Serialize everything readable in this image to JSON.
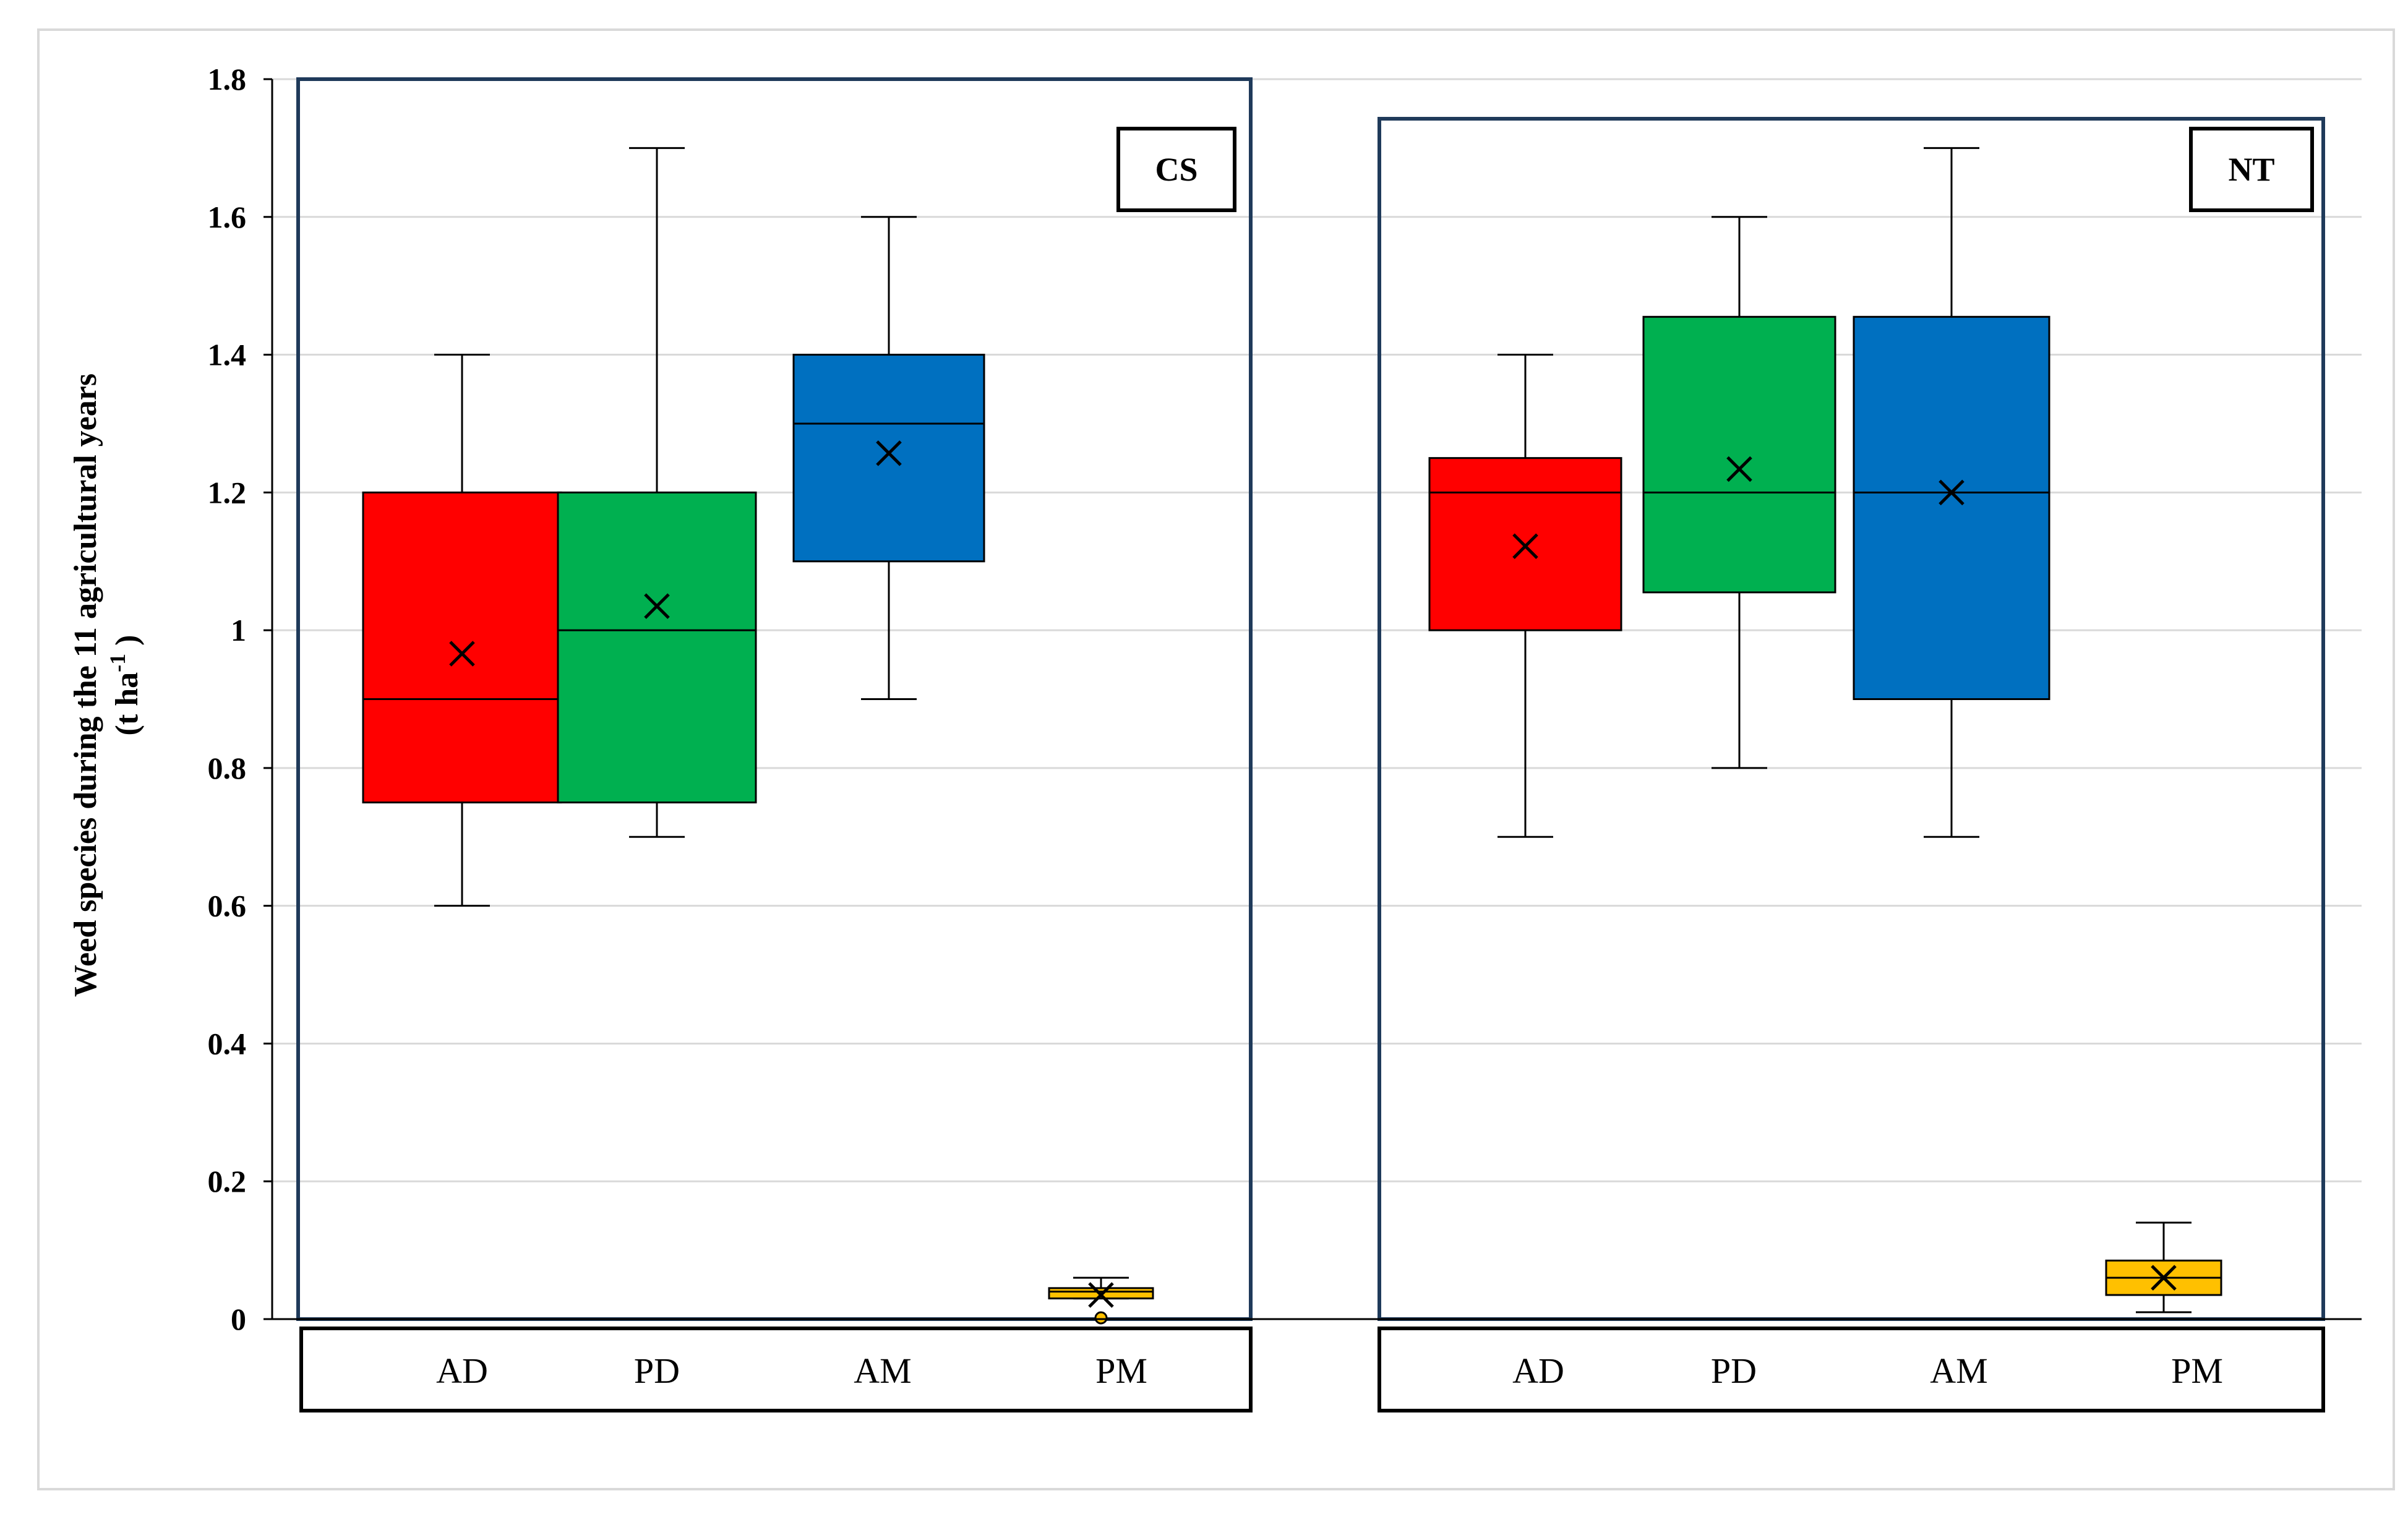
{
  "chart_data": {
    "type": "box",
    "ylabel_line1": "Weed species during the 11 agricultural years",
    "ylabel_line2_pre": "(t ha",
    "ylabel_line2_sup": "-1",
    "ylabel_line2_post": " )",
    "ylim": [
      0,
      1.8
    ],
    "y_ticks": [
      "0",
      "0.2",
      "0.4",
      "0.6",
      "0.8",
      "1",
      "1.2",
      "1.4",
      "1.6",
      "1.8"
    ],
    "grid": true,
    "categories": [
      "AD",
      "PD",
      "AM",
      "PM"
    ],
    "colors": {
      "AD": "#ff0000",
      "PD": "#00b050",
      "AM": "#0070c0",
      "PM": "#ffc000",
      "frame": "#1f3a5a"
    },
    "panels": [
      {
        "label": "CS",
        "boxes": [
          {
            "category": "AD",
            "min": 0.6,
            "q1": 0.75,
            "median": 0.9,
            "q3": 1.2,
            "max": 1.4,
            "mean": 0.966
          },
          {
            "category": "PD",
            "min": 0.7,
            "q1": 0.75,
            "median": 1.0,
            "q3": 1.2,
            "max": 1.7,
            "mean": 1.035
          },
          {
            "category": "AM",
            "min": 0.9,
            "q1": 1.1,
            "median": 1.3,
            "q3": 1.4,
            "max": 1.6,
            "mean": 1.257
          },
          {
            "category": "PM",
            "min": 0.03,
            "q1": 0.03,
            "median": 0.04,
            "q3": 0.045,
            "max": 0.06,
            "mean": 0.035,
            "outliers": [
              0.0
            ]
          }
        ]
      },
      {
        "label": "NT",
        "boxes": [
          {
            "category": "AD",
            "min": 0.7,
            "q1": 1.0,
            "median": 1.2,
            "q3": 1.25,
            "max": 1.4,
            "mean": 1.122
          },
          {
            "category": "PD",
            "min": 0.8,
            "q1": 1.055,
            "median": 1.2,
            "q3": 1.455,
            "max": 1.6,
            "mean": 1.234
          },
          {
            "category": "AM",
            "min": 0.7,
            "q1": 0.9,
            "median": 1.2,
            "q3": 1.455,
            "max": 1.7,
            "mean": 1.2
          },
          {
            "category": "PM",
            "min": 0.01,
            "q1": 0.035,
            "median": 0.06,
            "q3": 0.085,
            "max": 0.14,
            "mean": 0.06
          }
        ]
      }
    ]
  }
}
